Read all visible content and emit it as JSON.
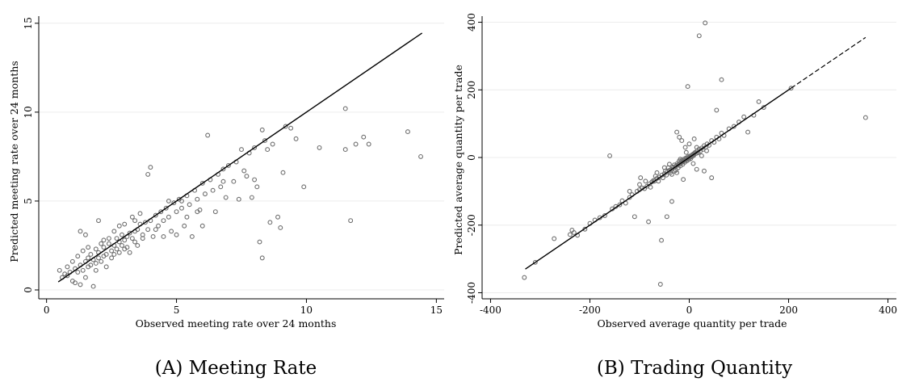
{
  "chart_data": [
    {
      "type": "scatter",
      "caption": "(A) Meeting Rate",
      "xlabel": "Observed meeting rate over 24 months",
      "ylabel": "Predicted meeting rate over 24 months",
      "xlim": [
        -0.3,
        15.3
      ],
      "ylim": [
        -0.5,
        15.4
      ],
      "xticks": [
        0,
        5,
        10,
        15
      ],
      "yticks": [
        0,
        5,
        10,
        15
      ],
      "grid": true,
      "fit_line": {
        "x": [
          0.45,
          14.45
        ],
        "y": [
          0.45,
          14.45
        ],
        "style": "solid"
      },
      "points": [
        [
          0.5,
          1.1
        ],
        [
          0.6,
          0.7
        ],
        [
          0.7,
          0.9
        ],
        [
          0.8,
          1.3
        ],
        [
          0.8,
          0.8
        ],
        [
          0.9,
          1.0
        ],
        [
          1.0,
          1.6
        ],
        [
          1.0,
          0.5
        ],
        [
          1.1,
          1.2
        ],
        [
          1.1,
          0.4
        ],
        [
          1.2,
          1.9
        ],
        [
          1.2,
          1.0
        ],
        [
          1.3,
          3.3
        ],
        [
          1.3,
          1.4
        ],
        [
          1.3,
          0.3
        ],
        [
          1.4,
          2.2
        ],
        [
          1.4,
          1.1
        ],
        [
          1.5,
          3.1
        ],
        [
          1.5,
          1.6
        ],
        [
          1.5,
          0.7
        ],
        [
          1.6,
          1.8
        ],
        [
          1.6,
          1.3
        ],
        [
          1.7,
          2.0
        ],
        [
          1.7,
          1.4
        ],
        [
          1.8,
          0.2
        ],
        [
          1.8,
          1.7
        ],
        [
          1.9,
          2.3
        ],
        [
          1.9,
          1.5
        ],
        [
          2.0,
          2.1
        ],
        [
          2.0,
          1.8
        ],
        [
          2.0,
          3.9
        ],
        [
          2.1,
          1.6
        ],
        [
          2.1,
          2.6
        ],
        [
          2.2,
          1.9
        ],
        [
          2.2,
          2.4
        ],
        [
          2.3,
          2.0
        ],
        [
          2.3,
          1.3
        ],
        [
          2.4,
          2.6
        ],
        [
          2.4,
          2.9
        ],
        [
          2.5,
          2.2
        ],
        [
          2.5,
          1.8
        ],
        [
          2.6,
          2.5
        ],
        [
          2.6,
          3.3
        ],
        [
          2.7,
          2.3
        ],
        [
          2.7,
          2.9
        ],
        [
          2.8,
          2.7
        ],
        [
          2.8,
          2.1
        ],
        [
          2.9,
          3.1
        ],
        [
          2.9,
          2.5
        ],
        [
          3.0,
          2.8
        ],
        [
          3.0,
          3.7
        ],
        [
          3.1,
          3.0
        ],
        [
          3.1,
          2.4
        ],
        [
          3.2,
          2.1
        ],
        [
          3.2,
          3.2
        ],
        [
          3.3,
          2.9
        ],
        [
          3.3,
          4.1
        ],
        [
          3.4,
          3.3
        ],
        [
          3.4,
          2.7
        ],
        [
          3.5,
          3.4
        ],
        [
          3.5,
          2.5
        ],
        [
          3.6,
          3.7
        ],
        [
          3.7,
          3.1
        ],
        [
          3.7,
          2.9
        ],
        [
          3.8,
          3.8
        ],
        [
          3.9,
          3.4
        ],
        [
          3.9,
          6.5
        ],
        [
          4.0,
          6.9
        ],
        [
          4.0,
          3.9
        ],
        [
          4.1,
          3.0
        ],
        [
          4.2,
          4.2
        ],
        [
          4.3,
          3.6
        ],
        [
          4.4,
          4.4
        ],
        [
          4.5,
          3.9
        ],
        [
          4.5,
          3.0
        ],
        [
          4.6,
          4.6
        ],
        [
          4.7,
          4.1
        ],
        [
          4.8,
          3.3
        ],
        [
          4.9,
          4.9
        ],
        [
          5.0,
          4.4
        ],
        [
          5.0,
          3.1
        ],
        [
          5.1,
          5.1
        ],
        [
          5.2,
          4.6
        ],
        [
          5.3,
          3.6
        ],
        [
          5.4,
          5.3
        ],
        [
          5.5,
          4.8
        ],
        [
          5.6,
          3.0
        ],
        [
          5.7,
          5.6
        ],
        [
          5.8,
          5.1
        ],
        [
          5.9,
          4.5
        ],
        [
          6.0,
          6.0
        ],
        [
          6.0,
          3.6
        ],
        [
          6.1,
          5.4
        ],
        [
          6.2,
          8.7
        ],
        [
          6.3,
          6.2
        ],
        [
          6.4,
          5.6
        ],
        [
          6.5,
          4.4
        ],
        [
          6.6,
          6.5
        ],
        [
          6.7,
          5.8
        ],
        [
          6.8,
          6.8
        ],
        [
          6.9,
          5.2
        ],
        [
          7.0,
          7.0
        ],
        [
          7.2,
          6.1
        ],
        [
          7.3,
          7.2
        ],
        [
          7.4,
          5.1
        ],
        [
          7.5,
          7.9
        ],
        [
          7.6,
          6.7
        ],
        [
          7.8,
          7.7
        ],
        [
          7.9,
          5.2
        ],
        [
          8.0,
          8.0
        ],
        [
          8.0,
          6.2
        ],
        [
          8.1,
          5.8
        ],
        [
          8.2,
          2.7
        ],
        [
          8.3,
          1.8
        ],
        [
          8.3,
          9.0
        ],
        [
          8.4,
          8.4
        ],
        [
          8.5,
          7.9
        ],
        [
          8.6,
          3.8
        ],
        [
          8.7,
          8.2
        ],
        [
          8.9,
          4.1
        ],
        [
          9.0,
          3.5
        ],
        [
          9.1,
          6.6
        ],
        [
          9.2,
          9.2
        ],
        [
          9.4,
          9.1
        ],
        [
          9.6,
          8.5
        ],
        [
          9.9,
          5.8
        ],
        [
          10.5,
          8.0
        ],
        [
          11.5,
          10.2
        ],
        [
          11.5,
          7.9
        ],
        [
          11.7,
          3.9
        ],
        [
          11.9,
          8.2
        ],
        [
          12.2,
          8.6
        ],
        [
          12.4,
          8.2
        ],
        [
          13.9,
          8.9
        ],
        [
          14.4,
          7.5
        ],
        [
          2.2,
          2.8
        ],
        [
          2.6,
          2.0
        ],
        [
          3.0,
          2.3
        ],
        [
          3.4,
          3.9
        ],
        [
          4.2,
          3.4
        ],
        [
          5.4,
          4.1
        ],
        [
          5.8,
          4.4
        ],
        [
          6.8,
          6.1
        ],
        [
          7.7,
          6.4
        ],
        [
          1.6,
          2.4
        ],
        [
          1.9,
          1.1
        ],
        [
          2.8,
          3.6
        ],
        [
          3.6,
          4.3
        ],
        [
          4.7,
          5.0
        ],
        [
          5.2,
          5.0
        ]
      ]
    },
    {
      "type": "scatter",
      "caption": "(B) Trading Quantity",
      "xlabel": "Observed average quantity per trade",
      "ylabel": "Predicted average quantity per trade",
      "xlim": [
        -417,
        417
      ],
      "ylim": [
        -418,
        418
      ],
      "xticks": [
        -400,
        -200,
        0,
        200,
        400
      ],
      "yticks": [
        -400,
        -200,
        0,
        200,
        400
      ],
      "grid": true,
      "fit_line": {
        "x": [
          -330,
          355
        ],
        "y": [
          -330,
          355
        ],
        "style": "solid",
        "dashed_from_x": 205
      },
      "points": [
        [
          -332,
          -355
        ],
        [
          -310,
          -310
        ],
        [
          -272,
          -240
        ],
        [
          -236,
          -215
        ],
        [
          -232,
          -222
        ],
        [
          -225,
          -230
        ],
        [
          -210,
          -212
        ],
        [
          -200,
          -195
        ],
        [
          -190,
          -185
        ],
        [
          -180,
          -178
        ],
        [
          -170,
          -172
        ],
        [
          -160,
          5
        ],
        [
          -155,
          -152
        ],
        [
          -148,
          -145
        ],
        [
          -140,
          -140
        ],
        [
          -135,
          -128
        ],
        [
          -128,
          -135
        ],
        [
          -120,
          -118
        ],
        [
          -115,
          -110
        ],
        [
          -110,
          -175
        ],
        [
          -105,
          -100
        ],
        [
          -100,
          -95
        ],
        [
          -98,
          -60
        ],
        [
          -95,
          -90
        ],
        [
          -90,
          -92
        ],
        [
          -88,
          -70
        ],
        [
          -85,
          -85
        ],
        [
          -82,
          -190
        ],
        [
          -80,
          -78
        ],
        [
          -78,
          -88
        ],
        [
          -75,
          -72
        ],
        [
          -72,
          -68
        ],
        [
          -70,
          -70
        ],
        [
          -68,
          -55
        ],
        [
          -65,
          -62
        ],
        [
          -62,
          -70
        ],
        [
          -60,
          -58
        ],
        [
          -58,
          -375
        ],
        [
          -56,
          -245
        ],
        [
          -55,
          -52
        ],
        [
          -53,
          -60
        ],
        [
          -50,
          -48
        ],
        [
          -48,
          -40
        ],
        [
          -46,
          -52
        ],
        [
          -45,
          -175
        ],
        [
          -44,
          -42
        ],
        [
          -42,
          -30
        ],
        [
          -40,
          -38
        ],
        [
          -38,
          -45
        ],
        [
          -36,
          -35
        ],
        [
          -35,
          -130
        ],
        [
          -34,
          -28
        ],
        [
          -32,
          -30
        ],
        [
          -30,
          -22
        ],
        [
          -28,
          -28
        ],
        [
          -27,
          -38
        ],
        [
          -26,
          -24
        ],
        [
          -25,
          -45
        ],
        [
          -24,
          -18
        ],
        [
          -23,
          -22
        ],
        [
          -22,
          -30
        ],
        [
          -21,
          -20
        ],
        [
          -20,
          -10
        ],
        [
          -19,
          -18
        ],
        [
          -18,
          -25
        ],
        [
          -17,
          -16
        ],
        [
          -16,
          -12
        ],
        [
          -15,
          -8
        ],
        [
          -14,
          -14
        ],
        [
          -13,
          -20
        ],
        [
          -12,
          -11
        ],
        [
          -11,
          -5
        ],
        [
          -10,
          -9
        ],
        [
          -9,
          -14
        ],
        [
          -8,
          -7
        ],
        [
          -7,
          -2
        ],
        [
          -6,
          -6
        ],
        [
          -5,
          -10
        ],
        [
          -4,
          -3
        ],
        [
          -3,
          2
        ],
        [
          -2,
          -2
        ],
        [
          -1,
          -6
        ],
        [
          0,
          0
        ],
        [
          1,
          4
        ],
        [
          2,
          1
        ],
        [
          3,
          -3
        ],
        [
          4,
          5
        ],
        [
          5,
          2
        ],
        [
          6,
          8
        ],
        [
          7,
          5
        ],
        [
          8,
          10
        ],
        [
          9,
          6
        ],
        [
          10,
          12
        ],
        [
          12,
          15
        ],
        [
          14,
          12
        ],
        [
          16,
          20
        ],
        [
          18,
          14
        ],
        [
          20,
          25
        ],
        [
          22,
          18
        ],
        [
          25,
          28
        ],
        [
          28,
          24
        ],
        [
          30,
          35
        ],
        [
          33,
          30
        ],
        [
          36,
          40
        ],
        [
          40,
          36
        ],
        [
          45,
          50
        ],
        [
          50,
          45
        ],
        [
          55,
          60
        ],
        [
          60,
          55
        ],
        [
          65,
          72
        ],
        [
          70,
          65
        ],
        [
          80,
          85
        ],
        [
          90,
          92
        ],
        [
          100,
          105
        ],
        [
          110,
          120
        ],
        [
          118,
          75
        ],
        [
          130,
          125
        ],
        [
          140,
          165
        ],
        [
          150,
          148
        ],
        [
          205,
          205
        ],
        [
          20,
          360
        ],
        [
          32,
          398
        ],
        [
          -3,
          210
        ],
        [
          65,
          230
        ],
        [
          55,
          140
        ],
        [
          -25,
          75
        ],
        [
          -15,
          50
        ],
        [
          -8,
          30
        ],
        [
          -12,
          -65
        ],
        [
          8,
          -18
        ],
        [
          15,
          -35
        ],
        [
          30,
          -40
        ],
        [
          45,
          -60
        ],
        [
          -30,
          -40
        ],
        [
          -20,
          60
        ],
        [
          0,
          40
        ],
        [
          10,
          55
        ],
        [
          -50,
          -30
        ],
        [
          -40,
          -20
        ],
        [
          25,
          5
        ],
        [
          355,
          118
        ],
        [
          -240,
          -228
        ],
        [
          -120,
          -100
        ],
        [
          -100,
          -80
        ],
        [
          -65,
          -45
        ],
        [
          15,
          30
        ],
        [
          35,
          20
        ],
        [
          -35,
          -50
        ],
        [
          -18,
          -5
        ],
        [
          -6,
          15
        ]
      ]
    }
  ]
}
